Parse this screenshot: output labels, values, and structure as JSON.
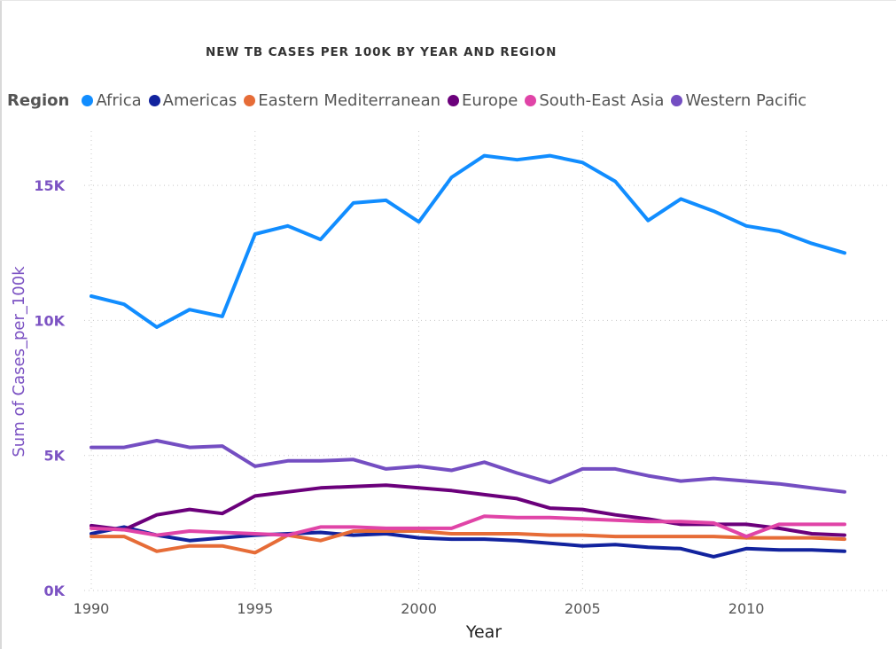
{
  "chart_data": {
    "type": "line",
    "title": "NEW TB CASES PER 100K BY YEAR AND REGION",
    "legend_title": "Region",
    "xlabel": "Year",
    "ylabel": "Sum of Cases_per_100k",
    "xlim": [
      1990,
      2013
    ],
    "ylim": [
      0,
      17500
    ],
    "x_ticks": [
      1990,
      1995,
      2000,
      2005,
      2010
    ],
    "x_tick_labels": [
      "1990",
      "1995",
      "2000",
      "2005",
      "2010"
    ],
    "y_ticks": [
      0,
      5000,
      10000,
      15000
    ],
    "y_tick_labels": [
      "0K",
      "5K",
      "10K",
      "15K"
    ],
    "grid": "dotted",
    "legend_position": "top-left",
    "x": [
      1990,
      1991,
      1992,
      1993,
      1994,
      1995,
      1996,
      1997,
      1998,
      1999,
      2000,
      2001,
      2002,
      2003,
      2004,
      2005,
      2006,
      2007,
      2008,
      2009,
      2010,
      2011,
      2012,
      2013
    ],
    "series": [
      {
        "name": "Africa",
        "color": "#118dff",
        "values": [
          10900,
          10600,
          9750,
          10400,
          10150,
          13200,
          13500,
          13000,
          14350,
          14450,
          13650,
          15300,
          16100,
          15950,
          16100,
          15850,
          15150,
          13700,
          14500,
          14050,
          13500,
          13300,
          12850,
          12500
        ]
      },
      {
        "name": "Americas",
        "color": "#12239e",
        "values": [
          2100,
          2350,
          2050,
          1850,
          1950,
          2050,
          2100,
          2150,
          2050,
          2100,
          1950,
          1900,
          1900,
          1850,
          1750,
          1650,
          1700,
          1600,
          1550,
          1250,
          1550,
          1500,
          1500,
          1450
        ]
      },
      {
        "name": "Eastern Mediterranean",
        "color": "#e66c37",
        "values": [
          2000,
          2000,
          1450,
          1650,
          1650,
          1400,
          2050,
          1850,
          2200,
          2200,
          2200,
          2100,
          2100,
          2100,
          2050,
          2050,
          2000,
          2000,
          2000,
          2000,
          1950,
          1950,
          1950,
          1900
        ]
      },
      {
        "name": "Europe",
        "color": "#6b007b",
        "values": [
          2400,
          2250,
          2800,
          3000,
          2850,
          3500,
          3650,
          3800,
          3850,
          3900,
          3800,
          3700,
          3550,
          3400,
          3050,
          3000,
          2800,
          2650,
          2450,
          2450,
          2450,
          2300,
          2100,
          2050
        ]
      },
      {
        "name": "South-East Asia",
        "color": "#e044a7",
        "values": [
          2300,
          2250,
          2050,
          2200,
          2150,
          2100,
          2050,
          2350,
          2350,
          2300,
          2300,
          2300,
          2750,
          2700,
          2700,
          2650,
          2600,
          2550,
          2550,
          2500,
          2000,
          2450,
          2450,
          2450
        ]
      },
      {
        "name": "Western Pacific",
        "color": "#744ec2",
        "values": [
          5300,
          5300,
          5550,
          5300,
          5350,
          4600,
          4800,
          4800,
          4850,
          4500,
          4600,
          4450,
          4750,
          4350,
          4000,
          4500,
          4500,
          4250,
          4050,
          4150,
          4050,
          3950,
          3800,
          3650
        ]
      }
    ]
  }
}
